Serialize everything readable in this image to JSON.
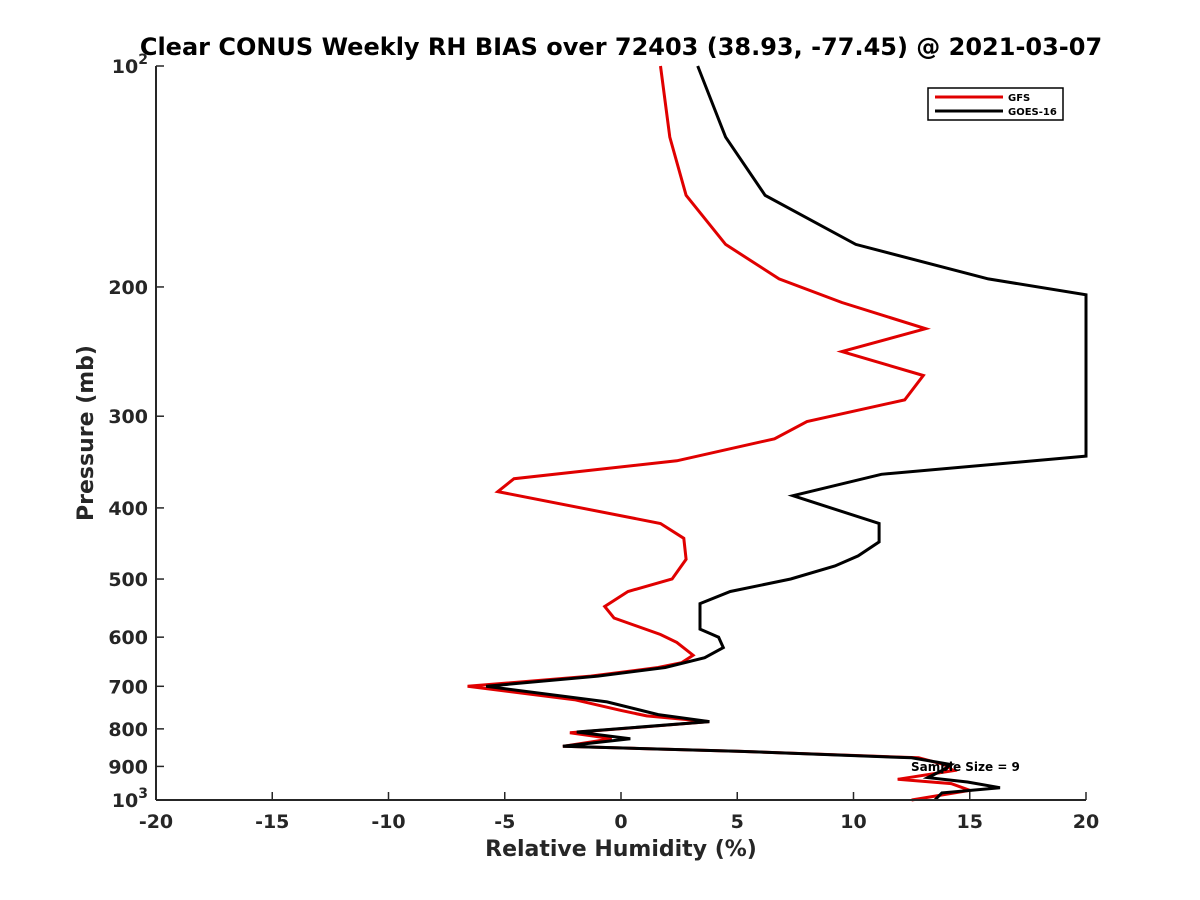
{
  "colors": {
    "gfs": "#e00000",
    "goes": "#000000",
    "axis": "#262626",
    "background": "#ffffff"
  },
  "chart_data": {
    "type": "line",
    "orientation": "profile",
    "title": "Clear CONUS Weekly RH BIAS over 72403 (38.93, -77.45) @ 2021-03-07",
    "xlabel": "Relative Humidity (%)",
    "ylabel": "Pressure (mb)",
    "xlim": [
      -20,
      20
    ],
    "ylim": [
      100,
      1000
    ],
    "y_scale": "log",
    "y_reversed": true,
    "grid": false,
    "legend_position": "top-right",
    "x_ticks": [
      -20,
      -15,
      -10,
      -5,
      0,
      5,
      10,
      15,
      20
    ],
    "x_tick_labels": [
      "-20",
      "-15",
      "-10",
      "-5",
      "0",
      "5",
      "10",
      "15",
      "20"
    ],
    "y_ticks": [
      100,
      200,
      300,
      400,
      500,
      600,
      700,
      800,
      900,
      1000
    ],
    "y_tick_labels": [
      {
        "base": "10",
        "exp": "2"
      },
      {
        "base": "200"
      },
      {
        "base": "300"
      },
      {
        "base": "400"
      },
      {
        "base": "500"
      },
      {
        "base": "600"
      },
      {
        "base": "700"
      },
      {
        "base": "800"
      },
      {
        "base": "900"
      },
      {
        "base": "10",
        "exp": "3"
      }
    ],
    "annotation": "Sample Size = 9",
    "series": [
      {
        "name": "GFS",
        "color": "#e00000",
        "points": [
          [
            1.7,
            100
          ],
          [
            2.1,
            125
          ],
          [
            2.8,
            150
          ],
          [
            4.5,
            175
          ],
          [
            6.8,
            195
          ],
          [
            9.5,
            210
          ],
          [
            13.1,
            228
          ],
          [
            9.5,
            245
          ],
          [
            13.0,
            264
          ],
          [
            12.2,
            285
          ],
          [
            8.0,
            305
          ],
          [
            6.6,
            322
          ],
          [
            2.4,
            345
          ],
          [
            -4.6,
            365
          ],
          [
            -5.3,
            380
          ],
          [
            1.7,
            420
          ],
          [
            2.7,
            440
          ],
          [
            2.8,
            470
          ],
          [
            2.2,
            500
          ],
          [
            0.3,
            520
          ],
          [
            -0.7,
            545
          ],
          [
            -0.3,
            565
          ],
          [
            1.7,
            595
          ],
          [
            2.4,
            610
          ],
          [
            3.1,
            635
          ],
          [
            2.6,
            650
          ],
          [
            1.6,
            660
          ],
          [
            -1.3,
            678
          ],
          [
            -6.6,
            700
          ],
          [
            -2.0,
            730
          ],
          [
            0.0,
            755
          ],
          [
            1.1,
            768
          ],
          [
            3.8,
            782
          ],
          [
            -2.2,
            810
          ],
          [
            -0.4,
            825
          ],
          [
            -2.5,
            845
          ],
          [
            5.0,
            858
          ],
          [
            12.8,
            876
          ],
          [
            13.9,
            895
          ],
          [
            14.3,
            912
          ],
          [
            11.9,
            937
          ],
          [
            14.2,
            950
          ],
          [
            15.0,
            970
          ],
          [
            12.5,
            1000
          ]
        ]
      },
      {
        "name": "GOES-16",
        "color": "#000000",
        "points": [
          [
            3.3,
            100
          ],
          [
            4.5,
            125
          ],
          [
            6.2,
            150
          ],
          [
            10.1,
            175
          ],
          [
            15.8,
            195
          ],
          [
            20.0,
            205
          ],
          [
            20.0,
            340
          ],
          [
            11.2,
            360
          ],
          [
            7.4,
            385
          ],
          [
            11.1,
            420
          ],
          [
            11.1,
            445
          ],
          [
            10.2,
            465
          ],
          [
            9.2,
            480
          ],
          [
            7.3,
            500
          ],
          [
            4.7,
            520
          ],
          [
            3.4,
            540
          ],
          [
            3.4,
            585
          ],
          [
            4.2,
            600
          ],
          [
            4.4,
            620
          ],
          [
            3.6,
            640
          ],
          [
            1.9,
            660
          ],
          [
            -1.0,
            678
          ],
          [
            -5.8,
            700
          ],
          [
            -0.6,
            735
          ],
          [
            1.6,
            765
          ],
          [
            3.8,
            782
          ],
          [
            -1.9,
            808
          ],
          [
            0.4,
            825
          ],
          [
            -2.5,
            845
          ],
          [
            5.0,
            858
          ],
          [
            12.5,
            876
          ],
          [
            14.2,
            895
          ],
          [
            13.8,
            912
          ],
          [
            13.2,
            932
          ],
          [
            14.9,
            945
          ],
          [
            16.3,
            962
          ],
          [
            13.8,
            978
          ],
          [
            13.5,
            1000
          ]
        ]
      }
    ]
  }
}
